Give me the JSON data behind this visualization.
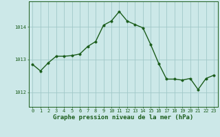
{
  "x": [
    0,
    1,
    2,
    3,
    4,
    5,
    6,
    7,
    8,
    9,
    10,
    11,
    12,
    13,
    14,
    15,
    16,
    17,
    18,
    19,
    20,
    21,
    22,
    23
  ],
  "y": [
    1012.85,
    1012.65,
    1012.9,
    1013.1,
    1013.1,
    1013.12,
    1013.17,
    1013.4,
    1013.55,
    1014.05,
    1014.18,
    1014.47,
    1014.18,
    1014.07,
    1013.97,
    1013.45,
    1012.88,
    1012.4,
    1012.4,
    1012.37,
    1012.42,
    1012.08,
    1012.42,
    1012.52
  ],
  "line_color": "#1a5c1a",
  "marker_color": "#1a5c1a",
  "bg_color": "#cce8e8",
  "grid_color": "#a0c8c8",
  "axis_color": "#1a5c1a",
  "tick_color": "#1a5c1a",
  "xlabel": "Graphe pression niveau de la mer (hPa)",
  "xlabel_fontsize": 6.5,
  "ylabel_ticks": [
    1012,
    1013,
    1014
  ],
  "ylim": [
    1011.55,
    1014.78
  ],
  "xlim": [
    -0.5,
    23.5
  ],
  "xticks": [
    0,
    1,
    2,
    3,
    4,
    5,
    6,
    7,
    8,
    9,
    10,
    11,
    12,
    13,
    14,
    15,
    16,
    17,
    18,
    19,
    20,
    21,
    22,
    23
  ],
  "tick_fontsize": 5.0,
  "line_width": 1.0,
  "marker_size": 2.5
}
